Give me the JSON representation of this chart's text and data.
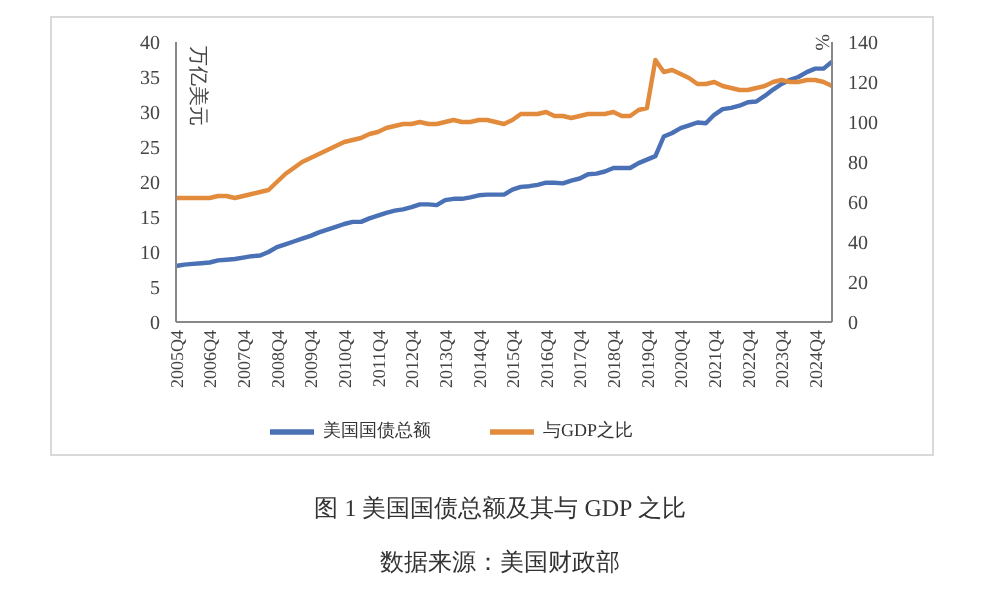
{
  "chart_data": {
    "type": "line",
    "title": "图 1 美国国债总额及其与 GDP 之比",
    "ylabel": "万亿美元",
    "y2label": "%",
    "annotations": [
      "数据来源：美国财政部"
    ],
    "categories": [
      "2005Q4",
      null,
      null,
      null,
      "2006Q4",
      null,
      null,
      null,
      "2007Q4",
      null,
      null,
      null,
      "2008Q4",
      null,
      null,
      null,
      "2009Q4",
      null,
      null,
      null,
      "2010Q4",
      null,
      null,
      null,
      "2011Q4",
      null,
      null,
      null,
      "2012Q4",
      null,
      null,
      null,
      "2013Q4",
      null,
      null,
      null,
      "2014Q4",
      null,
      null,
      null,
      "2015Q4",
      null,
      null,
      null,
      "2016Q4",
      null,
      null,
      null,
      "2017Q4",
      null,
      null,
      null,
      "2018Q4",
      null,
      null,
      null,
      "2019Q4",
      null,
      null,
      null,
      "2020Q4",
      null,
      null,
      null,
      "2021Q4",
      null,
      null,
      null,
      "2022Q4",
      null,
      null,
      null,
      "2023Q4",
      null,
      null,
      null,
      "2024Q4",
      null,
      null
    ],
    "series": [
      {
        "name": "美国国债总额",
        "color": "#4a70b5",
        "values": [
          8.0,
          8.2,
          8.3,
          8.4,
          8.5,
          8.8,
          8.9,
          9.0,
          9.2,
          9.4,
          9.5,
          10.0,
          10.7,
          11.1,
          11.5,
          11.9,
          12.3,
          12.8,
          13.2,
          13.6,
          14.0,
          14.3,
          14.3,
          14.8,
          15.2,
          15.6,
          15.9,
          16.1,
          16.4,
          16.8,
          16.8,
          16.7,
          17.4,
          17.6,
          17.6,
          17.8,
          18.1,
          18.2,
          18.2,
          18.2,
          18.9,
          19.3,
          19.4,
          19.6,
          19.9,
          19.9,
          19.8,
          20.2,
          20.5,
          21.1,
          21.2,
          21.5,
          22.0,
          22.0,
          22.0,
          22.7,
          23.2,
          23.7,
          26.5,
          27.0,
          27.7,
          28.1,
          28.5,
          28.4,
          29.6,
          30.4,
          30.6,
          30.9,
          31.4,
          31.5,
          32.3,
          33.2,
          34.0,
          34.6,
          35.0,
          35.7,
          36.2,
          36.2,
          37.2
        ]
      },
      {
        "name": "与GDP之比",
        "color": "#e38b3d",
        "axis": "y2",
        "values": [
          62,
          62,
          62,
          62,
          62,
          63,
          63,
          62,
          63,
          64,
          65,
          66,
          70,
          74,
          77,
          80,
          82,
          84,
          86,
          88,
          90,
          91,
          92,
          94,
          95,
          97,
          98,
          99,
          99,
          100,
          99,
          99,
          100,
          101,
          100,
          100,
          101,
          101,
          100,
          99,
          101,
          104,
          104,
          104,
          105,
          103,
          103,
          102,
          103,
          104,
          104,
          104,
          105,
          103,
          103,
          106,
          107,
          131,
          125,
          126,
          124,
          122,
          119,
          119,
          120,
          118,
          117,
          116,
          116,
          117,
          118,
          120,
          121,
          120,
          120,
          121,
          121,
          120,
          118
        ]
      }
    ],
    "ylim": [
      0,
      40
    ],
    "yticks": [
      0,
      5,
      10,
      15,
      20,
      25,
      30,
      35,
      40
    ],
    "y2lim": [
      0,
      140
    ],
    "y2ticks": [
      0,
      20,
      40,
      60,
      80,
      100,
      120,
      140
    ],
    "grid": false,
    "legend": "bottom",
    "marker": "none",
    "line_style": "solid"
  }
}
